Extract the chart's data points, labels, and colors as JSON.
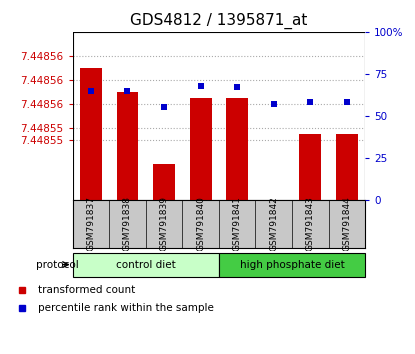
{
  "title": "GDS4812 / 1395871_at",
  "samples": [
    "GSM791837",
    "GSM791838",
    "GSM791839",
    "GSM791840",
    "GSM791841",
    "GSM791842",
    "GSM791843",
    "GSM791844"
  ],
  "transformed_counts": [
    7.448562,
    7.448558,
    7.448546,
    7.448557,
    7.448557,
    7.448536,
    7.448551,
    7.448551
  ],
  "percentile_ranks": [
    65,
    65,
    55,
    68,
    67,
    57,
    58,
    58
  ],
  "y_min": 7.44854,
  "y_max": 7.448568,
  "ytick_vals": [
    7.44855,
    7.448552,
    7.448556,
    7.44856,
    7.448564
  ],
  "ytick_labels": [
    "7.44855",
    "7.44855",
    "7.44856",
    "7.44856",
    "7.44856"
  ],
  "right_yticks": [
    0,
    25,
    50,
    75,
    100
  ],
  "bar_color": "#cc0000",
  "dot_color": "#0000cc",
  "bar_bg_color": "#ffffff",
  "plot_bg_color": "#ffffff",
  "label_bg_color": "#c8c8c8",
  "group_colors": [
    "#c8ffc8",
    "#44cc44"
  ],
  "groups": [
    {
      "label": "control diet",
      "start": 0,
      "end": 4
    },
    {
      "label": "high phosphate diet",
      "start": 4,
      "end": 8
    }
  ],
  "protocol_label": "protocol",
  "legend_items": [
    {
      "label": "transformed count",
      "color": "#cc0000"
    },
    {
      "label": "percentile rank within the sample",
      "color": "#0000cc"
    }
  ],
  "grid_color": "#aaaaaa",
  "tick_color_left": "#cc0000",
  "tick_color_right": "#0000cc",
  "title_fontsize": 11,
  "bar_width": 0.6
}
